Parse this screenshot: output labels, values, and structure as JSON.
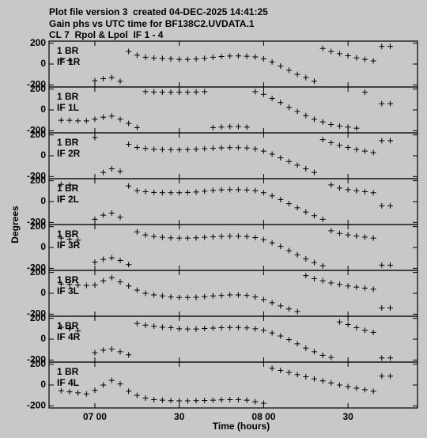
{
  "chart_data": {
    "type": "scatter",
    "title_lines": [
      "Plot file version 3  created 04-DEC-2025 14:41:25",
      "Gain phs vs UTC time for BF138C2.UVDATA.1",
      "CL 7  Rpol & Lpol  IF 1 - 4"
    ],
    "xlabel": "Time (hours)",
    "ylabel": "Degrees",
    "marker": "+",
    "xlim": [
      403.7,
      534.7
    ],
    "xticks": [
      {
        "value": 420,
        "label": "07 00"
      },
      {
        "value": 450,
        "label": "30"
      },
      {
        "value": 480,
        "label": "08 00"
      },
      {
        "value": 510,
        "label": "30"
      }
    ],
    "ylim": [
      -220,
      220
    ],
    "yticks": [
      -200,
      0,
      200
    ],
    "x": [
      408,
      411,
      414,
      417,
      420,
      423,
      426,
      429,
      432,
      435,
      438,
      441,
      444,
      447,
      450,
      453,
      456,
      459,
      462,
      465,
      468,
      471,
      474,
      477,
      480,
      483,
      486,
      489,
      492,
      495,
      498,
      501,
      504,
      507,
      510,
      513,
      516,
      519,
      522,
      525
    ],
    "series": [
      {
        "antenna": "1 BR",
        "name": "IF 1R",
        "color": "#000000",
        "values": [
          40,
          35,
          null,
          null,
          -160,
          -140,
          -130,
          -165,
          120,
          85,
          65,
          58,
          54,
          50,
          45,
          45,
          48,
          55,
          65,
          72,
          77,
          78,
          75,
          68,
          50,
          20,
          -20,
          -60,
          -100,
          -130,
          -165,
          150,
          120,
          100,
          80,
          60,
          45,
          30,
          170,
          170
        ]
      },
      {
        "antenna": "1 BR",
        "name": "IF 1L",
        "color": "#000000",
        "values": [
          -100,
          -100,
          -105,
          -105,
          -90,
          -70,
          -60,
          -90,
          -130,
          -170,
          175,
          172,
          170,
          170,
          170,
          170,
          172,
          175,
          -170,
          -165,
          -160,
          -160,
          -165,
          175,
          150,
          110,
          70,
          25,
          -15,
          -55,
          -90,
          -115,
          -140,
          -155,
          -165,
          -175,
          170,
          null,
          60,
          60
        ]
      },
      {
        "antenna": "1 BR",
        "name": "IF 2R",
        "color": "#000000",
        "values": [
          null,
          null,
          null,
          null,
          175,
          -160,
          -125,
          -150,
          110,
          80,
          70,
          62,
          60,
          58,
          58,
          60,
          63,
          68,
          72,
          76,
          78,
          78,
          75,
          65,
          45,
          15,
          -20,
          -55,
          -90,
          -125,
          -160,
          155,
          125,
          100,
          80,
          60,
          45,
          30,
          145,
          145
        ]
      },
      {
        "antenna": "1 BR",
        "name": "IF 2L",
        "color": "#000000",
        "values": [
          165,
          160,
          null,
          null,
          -170,
          -130,
          -110,
          -150,
          150,
          105,
          95,
          88,
          85,
          85,
          85,
          88,
          92,
          100,
          108,
          113,
          115,
          115,
          112,
          105,
          85,
          55,
          20,
          -20,
          -60,
          -100,
          -135,
          -170,
          160,
          130,
          115,
          105,
          95,
          85,
          -40,
          -40
        ]
      },
      {
        "antenna": "1 BR",
        "name": "IF 3R",
        "color": "#000000",
        "values": [
          90,
          80,
          70,
          null,
          -140,
          -115,
          -100,
          -125,
          -165,
          150,
          120,
          105,
          98,
          92,
          90,
          90,
          92,
          98,
          102,
          106,
          108,
          108,
          104,
          95,
          75,
          45,
          10,
          -30,
          -70,
          -110,
          -145,
          -175,
          160,
          135,
          120,
          110,
          100,
          90,
          -170,
          -170
        ]
      },
      {
        "antenna": "1 BR",
        "name": "IF 3L",
        "color": "#000000",
        "values": [
          90,
          85,
          80,
          75,
          80,
          120,
          150,
          110,
          70,
          30,
          0,
          -15,
          -25,
          -35,
          -40,
          -40,
          -38,
          -32,
          -25,
          -20,
          -15,
          -15,
          -20,
          -35,
          -60,
          -90,
          -120,
          -150,
          -175,
          170,
          140,
          120,
          100,
          85,
          70,
          60,
          50,
          40,
          -140,
          -140
        ]
      },
      {
        "antenna": "1 BR",
        "name": "IF 4R",
        "color": "#000000",
        "values": [
          115,
          100,
          80,
          null,
          -130,
          -105,
          -95,
          -120,
          -150,
          150,
          135,
          125,
          115,
          110,
          100,
          98,
          98,
          102,
          106,
          110,
          112,
          112,
          108,
          100,
          85,
          60,
          30,
          -5,
          -45,
          -85,
          -120,
          -155,
          -175,
          165,
          140,
          110,
          85,
          65,
          -180,
          -180
        ]
      },
      {
        "antenna": "1 BR",
        "name": "IF 4L",
        "color": "#000000",
        "values": [
          -55,
          -65,
          -75,
          -85,
          -50,
          0,
          45,
          10,
          -60,
          -100,
          -125,
          -140,
          -145,
          -150,
          -152,
          -152,
          -150,
          -148,
          -145,
          -142,
          -140,
          -140,
          -145,
          -160,
          -175,
          160,
          140,
          120,
          100,
          80,
          60,
          40,
          20,
          0,
          -15,
          -30,
          -45,
          -60,
          85,
          85
        ]
      }
    ]
  }
}
